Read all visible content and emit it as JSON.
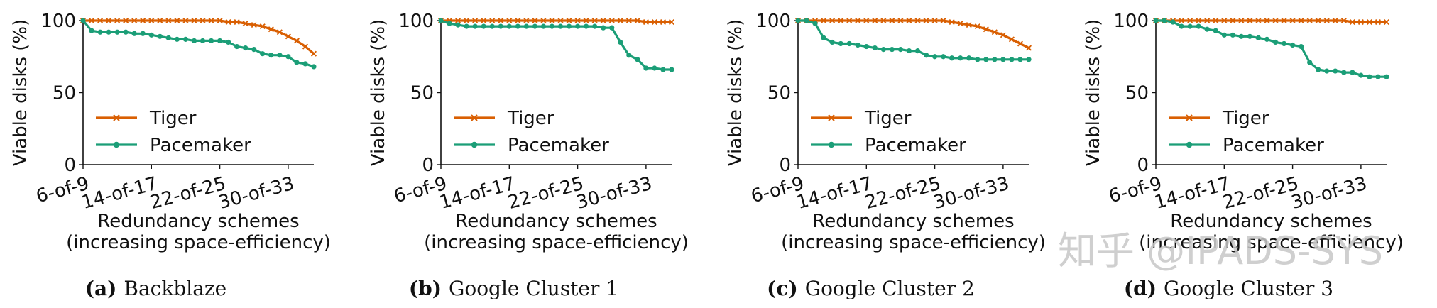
{
  "colors": {
    "tiger": "#d95f02",
    "pacemaker": "#1b9e77",
    "axis": "#111111"
  },
  "watermark": "知乎 @IPADS-SYS",
  "chart_data": [
    {
      "type": "line",
      "caption_letter": "(a)",
      "caption_title": "Backblaze",
      "ylabel": "Viable disks (%)",
      "xlabel_line1": "Redundancy schemes",
      "xlabel_line2": "(increasing space-efficiency)",
      "ylim": [
        0,
        100
      ],
      "yticks": [
        0,
        50,
        100
      ],
      "xlim": [
        6,
        33
      ],
      "xticks": [
        {
          "k": 6,
          "label": "6-of-9"
        },
        {
          "k": 14,
          "label": "14-of-17"
        },
        {
          "k": 22,
          "label": "22-of-25"
        },
        {
          "k": 30,
          "label": "30-of-33"
        }
      ],
      "series": [
        {
          "name": "Tiger",
          "key": "tiger",
          "marker": "x",
          "x": [
            6,
            7,
            8,
            9,
            10,
            11,
            12,
            13,
            14,
            15,
            16,
            17,
            18,
            19,
            20,
            21,
            22,
            23,
            24,
            25,
            26,
            27,
            28,
            29,
            30,
            31,
            32,
            33
          ],
          "values": [
            100,
            100,
            100,
            100,
            100,
            100,
            100,
            100,
            100,
            100,
            100,
            100,
            100,
            100,
            100,
            100,
            100,
            99,
            99,
            98,
            97,
            96,
            94,
            92,
            89,
            86,
            82,
            77
          ]
        },
        {
          "name": "Pacemaker",
          "key": "pacemaker",
          "marker": "o",
          "x": [
            6,
            7,
            8,
            9,
            10,
            11,
            12,
            13,
            14,
            15,
            16,
            17,
            18,
            19,
            20,
            21,
            22,
            23,
            24,
            25,
            26,
            27,
            28,
            29,
            30,
            31,
            32,
            33
          ],
          "values": [
            100,
            93,
            92,
            92,
            92,
            92,
            91,
            91,
            90,
            89,
            88,
            87,
            87,
            86,
            86,
            86,
            86,
            85,
            82,
            81,
            80,
            77,
            76,
            76,
            75,
            71,
            70,
            68
          ]
        }
      ]
    },
    {
      "type": "line",
      "caption_letter": "(b)",
      "caption_title": "Google Cluster 1",
      "ylabel": "Viable disks (%)",
      "xlabel_line1": "Redundancy schemes",
      "xlabel_line2": "(increasing space-efficiency)",
      "ylim": [
        0,
        100
      ],
      "yticks": [
        0,
        50,
        100
      ],
      "xlim": [
        6,
        33
      ],
      "xticks": [
        {
          "k": 6,
          "label": "6-of-9"
        },
        {
          "k": 14,
          "label": "14-of-17"
        },
        {
          "k": 22,
          "label": "22-of-25"
        },
        {
          "k": 30,
          "label": "30-of-33"
        }
      ],
      "series": [
        {
          "name": "Tiger",
          "key": "tiger",
          "marker": "x",
          "x": [
            6,
            7,
            8,
            9,
            10,
            11,
            12,
            13,
            14,
            15,
            16,
            17,
            18,
            19,
            20,
            21,
            22,
            23,
            24,
            25,
            26,
            27,
            28,
            29,
            30,
            31,
            32,
            33
          ],
          "values": [
            100,
            100,
            100,
            100,
            100,
            100,
            100,
            100,
            100,
            100,
            100,
            100,
            100,
            100,
            100,
            100,
            100,
            100,
            100,
            100,
            100,
            100,
            100,
            100,
            99,
            99,
            99,
            99
          ]
        },
        {
          "name": "Pacemaker",
          "key": "pacemaker",
          "marker": "o",
          "x": [
            6,
            7,
            8,
            9,
            10,
            11,
            12,
            13,
            14,
            15,
            16,
            17,
            18,
            19,
            20,
            21,
            22,
            23,
            24,
            25,
            26,
            27,
            28,
            29,
            30,
            31,
            32,
            33
          ],
          "values": [
            100,
            98,
            97,
            96,
            96,
            96,
            96,
            96,
            96,
            96,
            96,
            96,
            96,
            96,
            96,
            96,
            96,
            96,
            96,
            95,
            95,
            85,
            76,
            73,
            67,
            67,
            66,
            66
          ]
        }
      ]
    },
    {
      "type": "line",
      "caption_letter": "(c)",
      "caption_title": "Google Cluster 2",
      "ylabel": "Viable disks (%)",
      "xlabel_line1": "Redundancy schemes",
      "xlabel_line2": "(increasing space-efficiency)",
      "ylim": [
        0,
        100
      ],
      "yticks": [
        0,
        50,
        100
      ],
      "xlim": [
        6,
        33
      ],
      "xticks": [
        {
          "k": 6,
          "label": "6-of-9"
        },
        {
          "k": 14,
          "label": "14-of-17"
        },
        {
          "k": 22,
          "label": "22-of-25"
        },
        {
          "k": 30,
          "label": "30-of-33"
        }
      ],
      "series": [
        {
          "name": "Tiger",
          "key": "tiger",
          "marker": "x",
          "x": [
            6,
            7,
            8,
            9,
            10,
            11,
            12,
            13,
            14,
            15,
            16,
            17,
            18,
            19,
            20,
            21,
            22,
            23,
            24,
            25,
            26,
            27,
            28,
            29,
            30,
            31,
            32,
            33
          ],
          "values": [
            100,
            100,
            100,
            100,
            100,
            100,
            100,
            100,
            100,
            100,
            100,
            100,
            100,
            100,
            100,
            100,
            100,
            100,
            99,
            98,
            97,
            96,
            94,
            92,
            90,
            87,
            84,
            81
          ]
        },
        {
          "name": "Pacemaker",
          "key": "pacemaker",
          "marker": "o",
          "x": [
            6,
            7,
            8,
            9,
            10,
            11,
            12,
            13,
            14,
            15,
            16,
            17,
            18,
            19,
            20,
            21,
            22,
            23,
            24,
            25,
            26,
            27,
            28,
            29,
            30,
            31,
            32,
            33
          ],
          "values": [
            100,
            100,
            98,
            88,
            85,
            84,
            84,
            83,
            82,
            81,
            80,
            80,
            80,
            79,
            79,
            76,
            75,
            75,
            74,
            74,
            74,
            73,
            73,
            73,
            73,
            73,
            73,
            73
          ]
        }
      ]
    },
    {
      "type": "line",
      "caption_letter": "(d)",
      "caption_title": "Google Cluster 3",
      "ylabel": "Viable disks (%)",
      "xlabel_line1": "Redundancy schemes",
      "xlabel_line2": "(increasing space-efficiency)",
      "ylim": [
        0,
        100
      ],
      "yticks": [
        0,
        50,
        100
      ],
      "xlim": [
        6,
        33
      ],
      "xticks": [
        {
          "k": 6,
          "label": "6-of-9"
        },
        {
          "k": 14,
          "label": "14-of-17"
        },
        {
          "k": 22,
          "label": "22-of-25"
        },
        {
          "k": 30,
          "label": "30-of-33"
        }
      ],
      "series": [
        {
          "name": "Tiger",
          "key": "tiger",
          "marker": "x",
          "x": [
            6,
            7,
            8,
            9,
            10,
            11,
            12,
            13,
            14,
            15,
            16,
            17,
            18,
            19,
            20,
            21,
            22,
            23,
            24,
            25,
            26,
            27,
            28,
            29,
            30,
            31,
            32,
            33
          ],
          "values": [
            100,
            100,
            100,
            100,
            100,
            100,
            100,
            100,
            100,
            100,
            100,
            100,
            100,
            100,
            100,
            100,
            100,
            100,
            100,
            100,
            100,
            100,
            100,
            99,
            99,
            99,
            99,
            99
          ]
        },
        {
          "name": "Pacemaker",
          "key": "pacemaker",
          "marker": "o",
          "x": [
            6,
            7,
            8,
            9,
            10,
            11,
            12,
            13,
            14,
            15,
            16,
            17,
            18,
            19,
            20,
            21,
            22,
            23,
            24,
            25,
            26,
            27,
            28,
            29,
            30,
            31,
            32,
            33
          ],
          "values": [
            100,
            100,
            99,
            96,
            96,
            96,
            94,
            93,
            90,
            90,
            89,
            89,
            88,
            87,
            85,
            84,
            83,
            82,
            71,
            66,
            65,
            65,
            64,
            64,
            62,
            61,
            61,
            61
          ]
        }
      ]
    }
  ]
}
